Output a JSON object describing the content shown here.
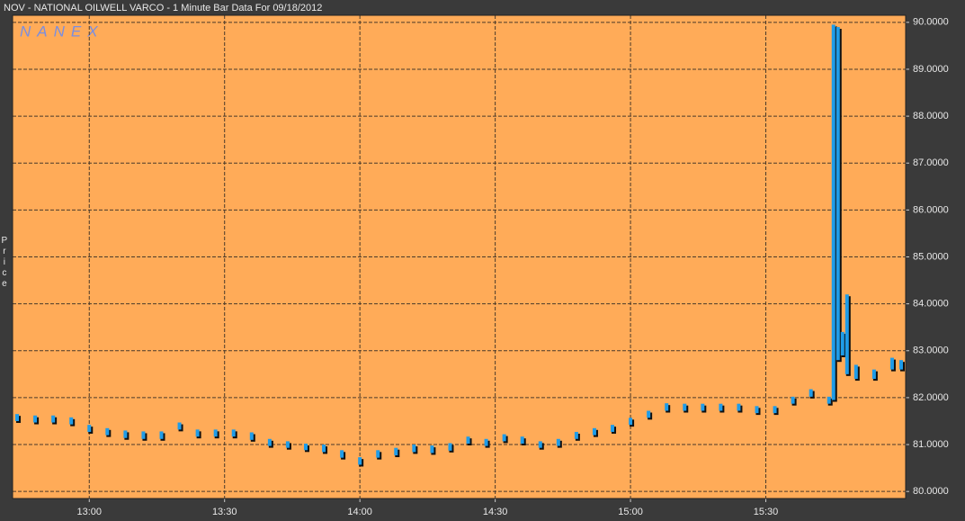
{
  "chart_data": {
    "type": "hilo",
    "title": "NOV - NATIONAL OILWELL VARCO - 1 Minute Bar Data For 09/18/2012",
    "watermark": "NANEX",
    "y_label": "Price",
    "x": [
      "12:44",
      "12:48",
      "12:52",
      "12:56",
      "13:00",
      "13:04",
      "13:08",
      "13:12",
      "13:16",
      "13:20",
      "13:24",
      "13:28",
      "13:32",
      "13:36",
      "13:40",
      "13:44",
      "13:48",
      "13:52",
      "13:56",
      "14:00",
      "14:04",
      "14:08",
      "14:12",
      "14:16",
      "14:20",
      "14:24",
      "14:28",
      "14:32",
      "14:36",
      "14:40",
      "14:44",
      "14:48",
      "14:52",
      "14:56",
      "15:00",
      "15:04",
      "15:08",
      "15:12",
      "15:16",
      "15:20",
      "15:24",
      "15:28",
      "15:32",
      "15:36",
      "15:40",
      "15:44",
      "15:45",
      "15:46",
      "15:47",
      "15:48",
      "15:50",
      "15:54",
      "15:58",
      "16:00"
    ],
    "series": [
      {
        "name": "High",
        "color": "#1f9ce8",
        "values": [
          81.65,
          81.62,
          81.62,
          81.58,
          81.42,
          81.35,
          81.3,
          81.28,
          81.28,
          81.47,
          81.32,
          81.32,
          81.32,
          81.26,
          81.12,
          81.07,
          81.02,
          81.0,
          80.88,
          80.73,
          80.88,
          80.93,
          81.0,
          80.98,
          81.03,
          81.17,
          81.12,
          81.22,
          81.17,
          81.07,
          81.12,
          81.27,
          81.35,
          81.42,
          81.57,
          81.72,
          81.88,
          81.87,
          81.87,
          81.87,
          81.87,
          81.82,
          81.82,
          82.02,
          82.18,
          82.02,
          89.95,
          89.9,
          83.4,
          84.2,
          82.7,
          82.6,
          82.85,
          82.8
        ]
      },
      {
        "name": "Low",
        "color": "#101010",
        "values": [
          81.5,
          81.47,
          81.47,
          81.43,
          81.27,
          81.2,
          81.14,
          81.12,
          81.12,
          81.32,
          81.17,
          81.17,
          81.17,
          81.1,
          80.97,
          80.93,
          80.88,
          80.84,
          80.72,
          80.57,
          80.72,
          80.77,
          80.84,
          80.82,
          80.87,
          81.02,
          80.97,
          81.07,
          81.02,
          80.93,
          80.97,
          81.12,
          81.2,
          81.27,
          81.42,
          81.57,
          81.72,
          81.72,
          81.72,
          81.72,
          81.72,
          81.67,
          81.67,
          81.87,
          82.02,
          81.87,
          81.95,
          82.8,
          82.9,
          82.5,
          82.4,
          82.4,
          82.6,
          82.6
        ]
      }
    ],
    "xlim": [
      "12:43",
      "16:01"
    ],
    "xticks": [
      "13:00",
      "13:30",
      "14:00",
      "14:30",
      "15:00",
      "15:30"
    ],
    "ylim": [
      79.85,
      90.15
    ],
    "yticks": [
      {
        "value": 80,
        "label": "80.0000"
      },
      {
        "value": 81,
        "label": "81.0000"
      },
      {
        "value": 82,
        "label": "82.0000"
      },
      {
        "value": 83,
        "label": "83.0000"
      },
      {
        "value": 84,
        "label": "84.0000"
      },
      {
        "value": 85,
        "label": "85.0000"
      },
      {
        "value": 86,
        "label": "86.0000"
      },
      {
        "value": 87,
        "label": "87.0000"
      },
      {
        "value": 88,
        "label": "88.0000"
      },
      {
        "value": 89,
        "label": "89.0000"
      },
      {
        "value": 90,
        "label": "90.0000"
      }
    ],
    "grid": true,
    "background": "#ffab58"
  }
}
